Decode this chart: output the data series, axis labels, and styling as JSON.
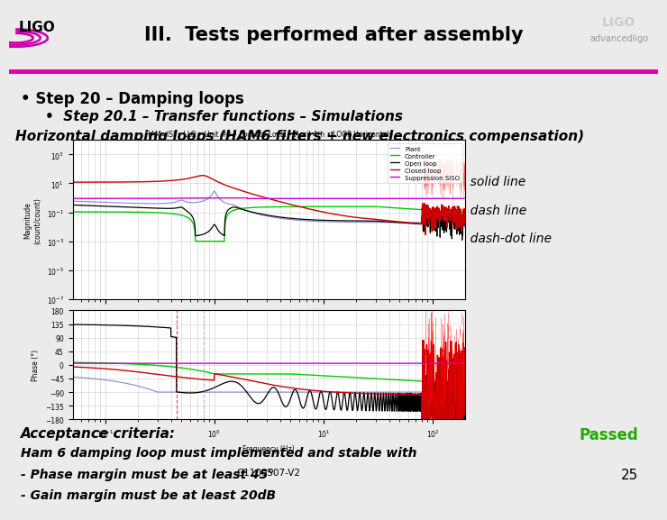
{
  "title": "III.  Tests performed after assembly",
  "header_bg": "#e8e8e8",
  "header_line_color": "#dd00aa",
  "body_bg": "#ebebeb",
  "bullet1": "Step 20 – Damping loops",
  "bullet2": "Step 20.1 – Transfer functions – Simulations",
  "section_title": "Horizontal damping loops (HAM6 filters + new electronics compensation)",
  "h_legend": [
    "H1 : solid line",
    "H2 : dash line",
    "H3 : dash-dot line"
  ],
  "acceptance_title": "Acceptance criteria:",
  "acceptance_lines": [
    "Ham 6 damping loop must implemented and stable with",
    "- Phase margin must be at least 45°",
    "- Gain margin must be at least 20dB"
  ],
  "passed_text": "Passed",
  "passed_color": "#22aa00",
  "doc_ref": "G1100507-V2",
  "page_num": "25",
  "plot_title": "HAM=ISI • LLO • Unit #3 • Local to Local • April 4th • LOOP Horizontals",
  "colors": {
    "plant": "#8888cc",
    "controller": "#00cc00",
    "open_loop": "#000000",
    "closed_loop": "#cc0000",
    "suppression": "#cc00cc"
  }
}
